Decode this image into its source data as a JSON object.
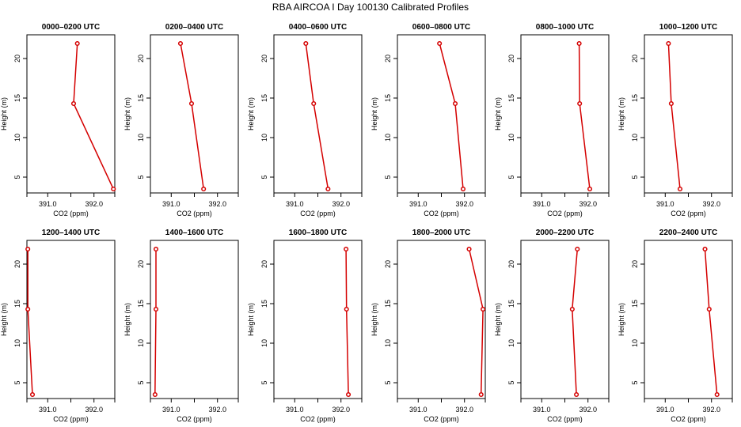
{
  "title": "RBA AIRCOA I  Day 100130  Calibrated Profiles",
  "colors": {
    "line": "#d40000",
    "axis": "#000000",
    "background": "#ffffff"
  },
  "chart_data": [
    {
      "type": "line",
      "title": "0000–0200 UTC",
      "xlabel": "CO2 (ppm)",
      "ylabel": "Height (m)",
      "xlim": [
        390.55,
        392.45
      ],
      "ylim": [
        3,
        23
      ],
      "xticks": [
        "391.0",
        "392.0"
      ],
      "yticks": [
        "5",
        "10",
        "15",
        "20"
      ],
      "x": [
        391.64,
        391.56,
        392.42
      ],
      "y": [
        21.9,
        14.3,
        3.5
      ]
    },
    {
      "type": "line",
      "title": "0200–0400 UTC",
      "xlabel": "CO2 (ppm)",
      "ylabel": "Height (m)",
      "xlim": [
        390.55,
        392.45
      ],
      "ylim": [
        3,
        23
      ],
      "xticks": [
        "391.0",
        "392.0"
      ],
      "yticks": [
        "5",
        "10",
        "15",
        "20"
      ],
      "x": [
        391.2,
        391.44,
        391.7
      ],
      "y": [
        21.9,
        14.3,
        3.5
      ]
    },
    {
      "type": "line",
      "title": "0400–0600 UTC",
      "xlabel": "CO2 (ppm)",
      "ylabel": "Height (m)",
      "xlim": [
        390.55,
        392.45
      ],
      "ylim": [
        3,
        23
      ],
      "xticks": [
        "391.0",
        "392.0"
      ],
      "yticks": [
        "5",
        "10",
        "15",
        "20"
      ],
      "x": [
        391.24,
        391.41,
        391.72
      ],
      "y": [
        21.9,
        14.3,
        3.5
      ]
    },
    {
      "type": "line",
      "title": "0600–0800 UTC",
      "xlabel": "CO2 (ppm)",
      "ylabel": "Height (m)",
      "xlim": [
        390.55,
        392.45
      ],
      "ylim": [
        3,
        23
      ],
      "xticks": [
        "391.0",
        "392.0"
      ],
      "yticks": [
        "5",
        "10",
        "15",
        "20"
      ],
      "x": [
        391.46,
        391.8,
        391.97
      ],
      "y": [
        21.9,
        14.3,
        3.5
      ]
    },
    {
      "type": "line",
      "title": "0800–1000 UTC",
      "xlabel": "CO2 (ppm)",
      "ylabel": "Height (m)",
      "xlim": [
        390.55,
        392.45
      ],
      "ylim": [
        3,
        23
      ],
      "xticks": [
        "391.0",
        "392.0"
      ],
      "yticks": [
        "5",
        "10",
        "15",
        "20"
      ],
      "x": [
        391.81,
        391.82,
        392.04
      ],
      "y": [
        21.9,
        14.3,
        3.5
      ]
    },
    {
      "type": "line",
      "title": "1000–1200 UTC",
      "xlabel": "CO2 (ppm)",
      "ylabel": "Height (m)",
      "xlim": [
        390.55,
        392.45
      ],
      "ylim": [
        3,
        23
      ],
      "xticks": [
        "391.0",
        "392.0"
      ],
      "yticks": [
        "5",
        "10",
        "15",
        "20"
      ],
      "x": [
        391.07,
        391.13,
        391.32
      ],
      "y": [
        21.9,
        14.3,
        3.5
      ]
    },
    {
      "type": "line",
      "title": "1200–1400 UTC",
      "xlabel": "CO2 (ppm)",
      "ylabel": "Height (m)",
      "xlim": [
        390.55,
        392.45
      ],
      "ylim": [
        3,
        23
      ],
      "xticks": [
        "391.0",
        "392.0"
      ],
      "yticks": [
        "5",
        "10",
        "15",
        "20"
      ],
      "x": [
        390.57,
        390.57,
        390.67
      ],
      "y": [
        21.9,
        14.3,
        3.5
      ]
    },
    {
      "type": "line",
      "title": "1400–1600 UTC",
      "xlabel": "CO2 (ppm)",
      "ylabel": "Height (m)",
      "xlim": [
        390.55,
        392.45
      ],
      "ylim": [
        3,
        23
      ],
      "xticks": [
        "391.0",
        "392.0"
      ],
      "yticks": [
        "5",
        "10",
        "15",
        "20"
      ],
      "x": [
        390.67,
        390.67,
        390.65
      ],
      "y": [
        21.9,
        14.3,
        3.5
      ]
    },
    {
      "type": "line",
      "title": "1600–1800 UTC",
      "xlabel": "CO2 (ppm)",
      "ylabel": "Height (m)",
      "xlim": [
        390.55,
        392.45
      ],
      "ylim": [
        3,
        23
      ],
      "xticks": [
        "391.0",
        "392.0"
      ],
      "yticks": [
        "5",
        "10",
        "15",
        "20"
      ],
      "x": [
        392.11,
        392.12,
        392.16
      ],
      "y": [
        21.9,
        14.3,
        3.5
      ]
    },
    {
      "type": "line",
      "title": "1800–2000 UTC",
      "xlabel": "CO2 (ppm)",
      "ylabel": "Height (m)",
      "xlim": [
        390.55,
        392.45
      ],
      "ylim": [
        3,
        23
      ],
      "xticks": [
        "391.0",
        "392.0"
      ],
      "yticks": [
        "5",
        "10",
        "15",
        "20"
      ],
      "x": [
        392.1,
        392.4,
        392.36
      ],
      "y": [
        21.9,
        14.3,
        3.5
      ]
    },
    {
      "type": "line",
      "title": "2000–2200 UTC",
      "xlabel": "CO2 (ppm)",
      "ylabel": "Height (m)",
      "xlim": [
        390.55,
        392.45
      ],
      "ylim": [
        3,
        23
      ],
      "xticks": [
        "391.0",
        "392.0"
      ],
      "yticks": [
        "5",
        "10",
        "15",
        "20"
      ],
      "x": [
        391.77,
        391.66,
        391.75
      ],
      "y": [
        21.9,
        14.3,
        3.5
      ]
    },
    {
      "type": "line",
      "title": "2200–2400 UTC",
      "xlabel": "CO2 (ppm)",
      "ylabel": "Height (m)",
      "xlim": [
        390.55,
        392.45
      ],
      "ylim": [
        3,
        23
      ],
      "xticks": [
        "391.0",
        "392.0"
      ],
      "yticks": [
        "5",
        "10",
        "15",
        "20"
      ],
      "x": [
        391.86,
        391.95,
        392.12
      ],
      "y": [
        21.9,
        14.3,
        3.5
      ]
    }
  ]
}
